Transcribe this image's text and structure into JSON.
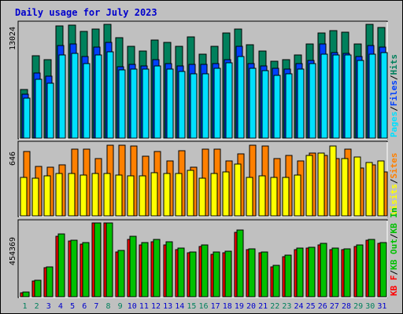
{
  "title": "Daily usage for July 2023",
  "colors": {
    "hits": "#00805c",
    "files": "#0040ff",
    "pages": "#00e0ff",
    "visits": "#ffff00",
    "sites": "#ff8000",
    "kb_in": "#00c000",
    "kb_out": "#00c000",
    "kb_f": "#ff0000",
    "title": "#0000cc",
    "weekend_tick": "#00805c",
    "weekday_tick": "#0000cc"
  },
  "chart_data": [
    {
      "type": "bar",
      "panel": "top",
      "ymax_label": "13024",
      "ymax": 13024,
      "legend": [
        "Pages",
        "Files",
        "Hits"
      ],
      "categories": [
        "1",
        "2",
        "3",
        "4",
        "5",
        "6",
        "7",
        "8",
        "9",
        "10",
        "11",
        "12",
        "13",
        "14",
        "15",
        "16",
        "17",
        "18",
        "19",
        "20",
        "21",
        "22",
        "23",
        "24",
        "25",
        "26",
        "27",
        "28",
        "29",
        "30",
        "31"
      ],
      "series": [
        {
          "name": "Hits",
          "values": [
            5600,
            9400,
            9000,
            12800,
            12900,
            12200,
            12500,
            13000,
            11500,
            10500,
            10000,
            11200,
            11000,
            10500,
            11600,
            9600,
            10500,
            12000,
            12500,
            10700,
            10000,
            8800,
            9000,
            9500,
            10800,
            12000,
            12300,
            12100,
            10800,
            13024,
            12700
          ]
        },
        {
          "name": "Files",
          "values": [
            5000,
            7500,
            7100,
            10600,
            10800,
            9300,
            10400,
            11000,
            8200,
            8400,
            8300,
            9000,
            8500,
            8300,
            8400,
            8400,
            8500,
            9000,
            10500,
            8500,
            8300,
            8000,
            7900,
            8500,
            8900,
            10800,
            9800,
            9700,
            9300,
            10600,
            10400
          ]
        },
        {
          "name": "Pages",
          "values": [
            4600,
            6700,
            6300,
            9500,
            9700,
            8500,
            9500,
            9900,
            7800,
            7900,
            7900,
            8300,
            7900,
            7600,
            7400,
            7400,
            8000,
            8600,
            9300,
            8000,
            7700,
            7200,
            7400,
            7900,
            8500,
            9600,
            9500,
            9500,
            8900,
            9600,
            9800
          ]
        }
      ]
    },
    {
      "type": "bar",
      "panel": "middle",
      "ymax_label": "646",
      "ymax": 646,
      "legend": [
        "Visits",
        "Sites"
      ],
      "categories": [
        "1",
        "2",
        "3",
        "4",
        "5",
        "6",
        "7",
        "8",
        "9",
        "10",
        "11",
        "12",
        "13",
        "14",
        "15",
        "16",
        "17",
        "18",
        "19",
        "20",
        "21",
        "22",
        "23",
        "24",
        "25",
        "26",
        "27",
        "28",
        "29",
        "30",
        "31"
      ],
      "series": [
        {
          "name": "Sites",
          "values": [
            580,
            450,
            440,
            460,
            600,
            600,
            520,
            640,
            640,
            630,
            540,
            580,
            500,
            590,
            440,
            600,
            600,
            500,
            560,
            640,
            630,
            520,
            550,
            500,
            570,
            550,
            520,
            600,
            430,
            460,
            400
          ]
        },
        {
          "name": "Visits",
          "values": [
            350,
            340,
            360,
            380,
            380,
            370,
            380,
            380,
            370,
            360,
            360,
            390,
            380,
            380,
            410,
            340,
            380,
            400,
            470,
            350,
            360,
            350,
            350,
            370,
            550,
            570,
            630,
            520,
            530,
            480,
            500
          ]
        }
      ]
    },
    {
      "type": "bar",
      "panel": "bottom",
      "ymax_label": "454369",
      "ymax": 454369,
      "legend": [
        "KB F",
        "KB Out",
        "KB In"
      ],
      "categories": [
        "1",
        "2",
        "3",
        "4",
        "5",
        "6",
        "7",
        "8",
        "9",
        "10",
        "11",
        "12",
        "13",
        "14",
        "15",
        "16",
        "17",
        "18",
        "19",
        "20",
        "21",
        "22",
        "23",
        "24",
        "25",
        "26",
        "27",
        "28",
        "29",
        "30",
        "31"
      ],
      "series": [
        {
          "name": "KB F",
          "values": [
            26000,
            95000,
            180000,
            370000,
            345000,
            325000,
            454369,
            454369,
            275000,
            355000,
            320000,
            340000,
            320000,
            290000,
            270000,
            310000,
            260000,
            270000,
            395000,
            290000,
            270000,
            185000,
            245000,
            290000,
            300000,
            320000,
            290000,
            290000,
            310000,
            350000,
            330000
          ]
        },
        {
          "name": "KB In",
          "values": [
            30000,
            100000,
            185000,
            385000,
            350000,
            335000,
            454369,
            454369,
            285000,
            370000,
            335000,
            355000,
            340000,
            300000,
            275000,
            320000,
            275000,
            280000,
            410000,
            295000,
            275000,
            195000,
            255000,
            300000,
            305000,
            330000,
            300000,
            295000,
            320000,
            355000,
            335000
          ]
        }
      ]
    }
  ]
}
